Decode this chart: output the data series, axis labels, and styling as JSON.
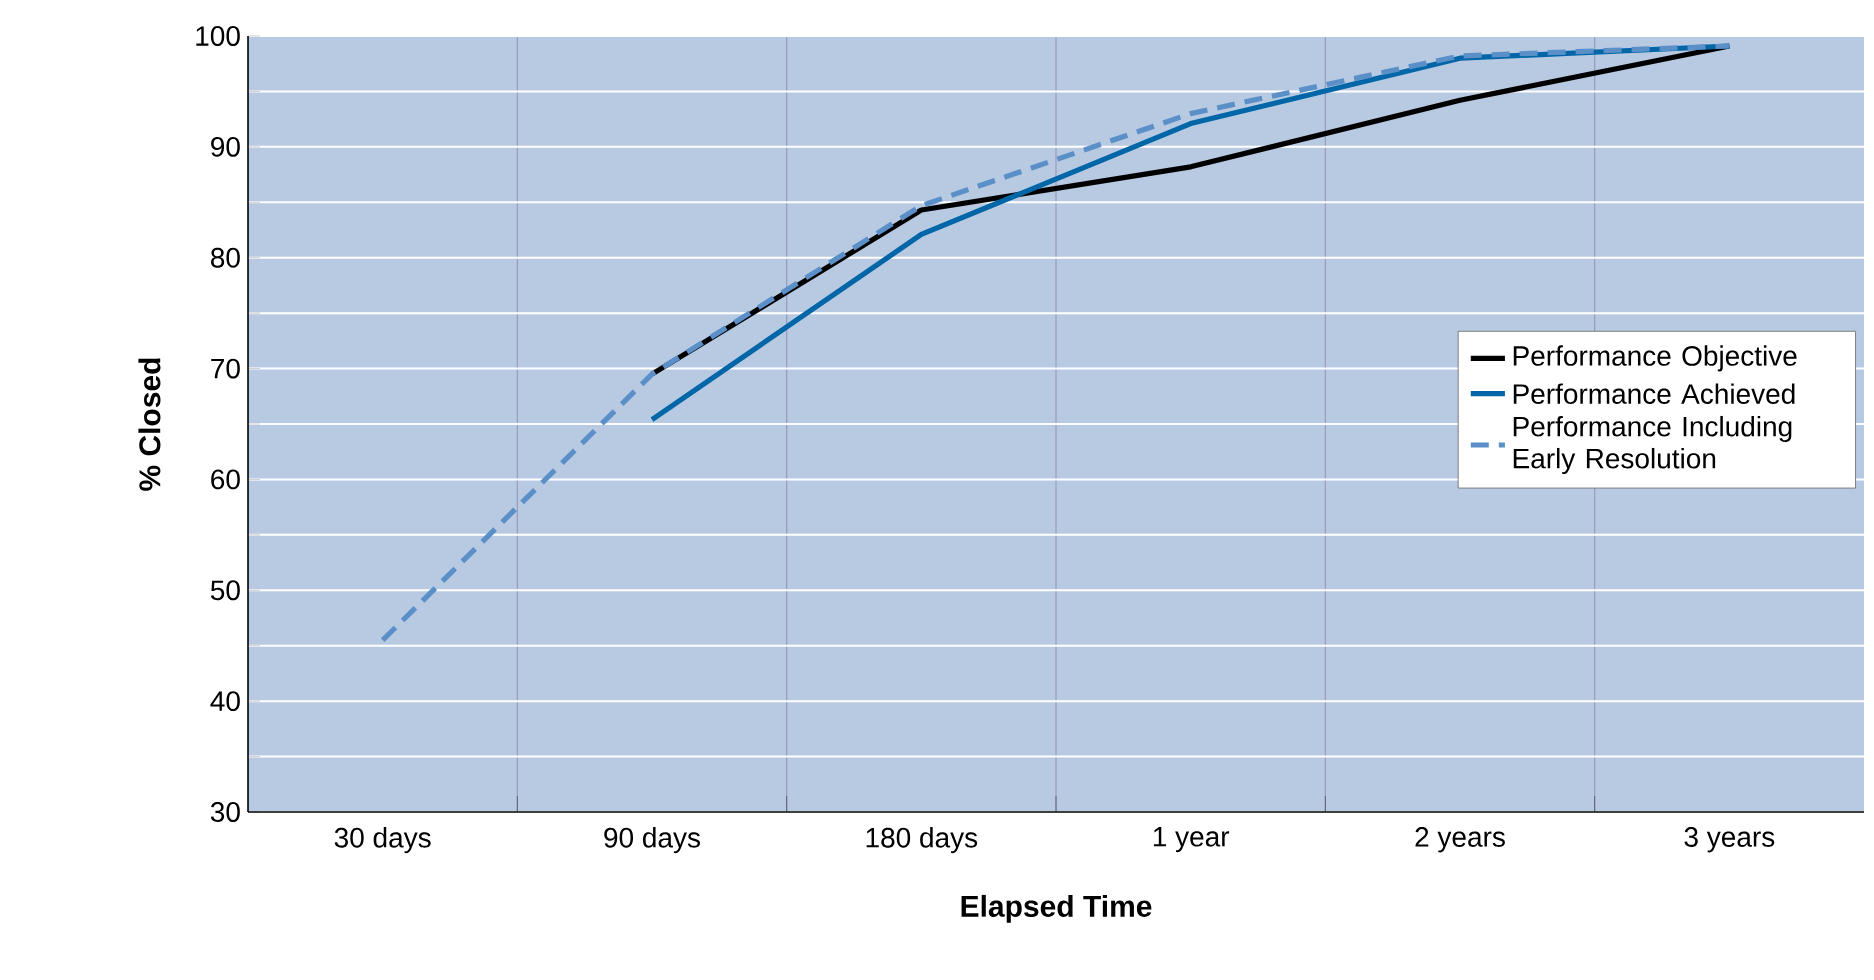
{
  "chart_data": {
    "type": "line",
    "xlabel": "Elapsed Time",
    "ylabel": "% Closed",
    "categories": [
      "30 days",
      "90 days",
      "180 days",
      "1 year",
      "2 years",
      "3 years"
    ],
    "series": [
      {
        "name": "Performance Objective",
        "color": "#000000",
        "values": [
          null,
          69.5,
          84.3,
          88.2,
          94.2,
          99.1
        ]
      },
      {
        "name": "Performance Achieved",
        "color": "#0066a8",
        "values": [
          null,
          65.4,
          82.1,
          92.1,
          98.0,
          99.1
        ]
      },
      {
        "name": "Performance Including Early Resolution",
        "color": "#5b8fc8",
        "line_style": "dashed",
        "values": [
          45.5,
          69.5,
          84.7,
          93.0,
          98.2,
          99.1
        ]
      }
    ],
    "ylim": [
      30,
      100
    ],
    "yticks": [
      30,
      {
        "value": 35,
        "label": null
      },
      40,
      {
        "value": 45,
        "label": null
      },
      50,
      {
        "value": 55,
        "label": null
      },
      60,
      {
        "value": 65,
        "label": null
      },
      70,
      {
        "value": 75,
        "label": null
      },
      80,
      {
        "value": 85,
        "label": null
      },
      90,
      {
        "value": 95,
        "label": null
      },
      100
    ],
    "grid": true,
    "legend": "right",
    "marker": "none",
    "line_style": "solid"
  }
}
